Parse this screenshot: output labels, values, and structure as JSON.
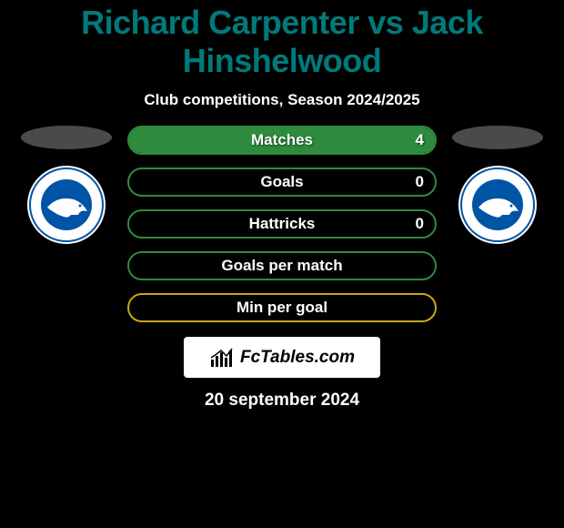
{
  "title": "Richard Carpenter vs Jack Hinshelwood",
  "title_color": "#007a7a",
  "subtitle": "Club competitions, Season 2024/2025",
  "background_color": "#000000",
  "text_color": "#ffffff",
  "player_left": {
    "name": "Richard Carpenter",
    "photo_placeholder_color": "#4a4a4a",
    "club": "Brighton & Hove Albion",
    "club_badge": {
      "outer_bg": "#ffffff",
      "ring_color": "#0054a6",
      "inner_bg": "#0054a6",
      "bird_color": "#ffffff"
    }
  },
  "player_right": {
    "name": "Jack Hinshelwood",
    "photo_placeholder_color": "#4a4a4a",
    "club": "Brighton & Hove Albion",
    "club_badge": {
      "outer_bg": "#ffffff",
      "ring_color": "#0054a6",
      "inner_bg": "#0054a6",
      "bird_color": "#ffffff"
    }
  },
  "bars": {
    "border_width": 2,
    "border_radius": 16,
    "height": 32,
    "label_fontsize": 17,
    "colors": {
      "green_border": "#2e8b3e",
      "green_fill": "#2e8b3e",
      "gold_border": "#c9a514",
      "gold_fill": "#c9a514"
    },
    "items": [
      {
        "label": "Matches",
        "left_value": "",
        "right_value": "4",
        "style": "green",
        "fill_from_right_pct": 100
      },
      {
        "label": "Goals",
        "left_value": "",
        "right_value": "0",
        "style": "green",
        "fill_from_right_pct": 0
      },
      {
        "label": "Hattricks",
        "left_value": "",
        "right_value": "0",
        "style": "green",
        "fill_from_right_pct": 0
      },
      {
        "label": "Goals per match",
        "left_value": "",
        "right_value": "",
        "style": "green",
        "fill_from_right_pct": 0
      },
      {
        "label": "Min per goal",
        "left_value": "",
        "right_value": "",
        "style": "gold",
        "fill_from_right_pct": 0
      }
    ]
  },
  "footer": {
    "brand": "FcTables.com",
    "card_bg": "#ffffff",
    "brand_color": "#000000",
    "icon_color": "#000000",
    "date": "20 september 2024"
  }
}
